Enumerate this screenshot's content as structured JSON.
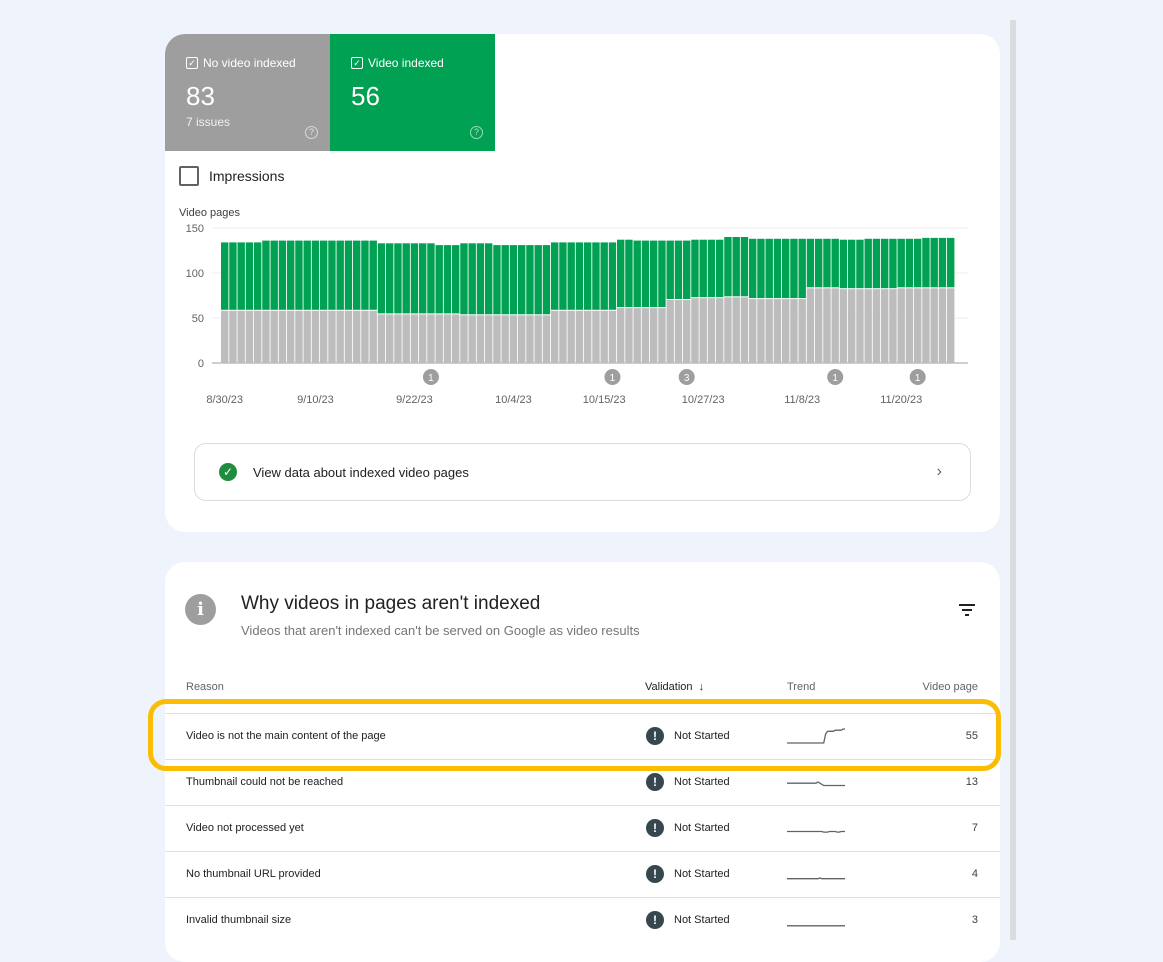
{
  "summary": {
    "no_video": {
      "label": "No video indexed",
      "value": "83",
      "sub": "7 issues",
      "color": "#9e9e9e",
      "checked": true
    },
    "video": {
      "label": "Video indexed",
      "value": "56",
      "color": "#00a152",
      "checked": true
    },
    "impressions_label": "Impressions",
    "impressions_checked": false
  },
  "chart_data": {
    "type": "bar",
    "stacked": true,
    "ylabel": "Video pages",
    "ylim": [
      0,
      150
    ],
    "yticks": [
      "0",
      "50",
      "100",
      "150"
    ],
    "grid": true,
    "x_range": [
      "8/30/23",
      "11/26/23"
    ],
    "xticks": [
      "8/30/23",
      "9/10/23",
      "9/22/23",
      "10/4/23",
      "10/15/23",
      "10/27/23",
      "11/8/23",
      "11/20/23"
    ],
    "annotations": [
      {
        "date": "9/24/23",
        "label": "1"
      },
      {
        "date": "10/16/23",
        "label": "1"
      },
      {
        "date": "10/25/23",
        "label": "3"
      },
      {
        "date": "11/12/23",
        "label": "1"
      },
      {
        "date": "11/22/23",
        "label": "1"
      }
    ],
    "series": [
      {
        "name": "No video indexed",
        "color": "#bdbdbd",
        "values": [
          58,
          58,
          58,
          58,
          58,
          58,
          58,
          58,
          58,
          58,
          58,
          58,
          58,
          58,
          58,
          58,
          58,
          58,
          58,
          54,
          54,
          54,
          54,
          54,
          54,
          54,
          54,
          54,
          54,
          53,
          53,
          53,
          53,
          53,
          53,
          53,
          53,
          53,
          53,
          53,
          58,
          58,
          58,
          58,
          58,
          58,
          58,
          58,
          61,
          61,
          61,
          61,
          61,
          61,
          70,
          70,
          70,
          72,
          72,
          72,
          72,
          73,
          73,
          73,
          71,
          71,
          71,
          71,
          71,
          71,
          71,
          83,
          83,
          83,
          83,
          82,
          82,
          82,
          82,
          82,
          82,
          82,
          83,
          83,
          83,
          83,
          83,
          83,
          83
        ]
      },
      {
        "name": "Video indexed",
        "color": "#00a152",
        "values": [
          76,
          76,
          76,
          76,
          76,
          78,
          78,
          78,
          78,
          78,
          78,
          78,
          78,
          78,
          78,
          78,
          78,
          78,
          78,
          79,
          79,
          79,
          79,
          79,
          79,
          79,
          77,
          77,
          77,
          80,
          80,
          80,
          80,
          78,
          78,
          78,
          78,
          78,
          78,
          78,
          76,
          76,
          76,
          76,
          76,
          76,
          76,
          76,
          76,
          76,
          75,
          75,
          75,
          75,
          66,
          66,
          66,
          65,
          65,
          65,
          65,
          67,
          67,
          67,
          67,
          67,
          67,
          67,
          67,
          67,
          67,
          55,
          55,
          55,
          55,
          55,
          55,
          55,
          56,
          56,
          56,
          56,
          55,
          55,
          55,
          56,
          56,
          56,
          56
        ]
      }
    ]
  },
  "view_button": {
    "label": "View data about indexed video pages",
    "icon": "check-circle-icon"
  },
  "issues": {
    "title": "Why videos in pages aren't indexed",
    "description": "Videos that aren't indexed can't be served on Google as video results",
    "columns": {
      "reason": "Reason",
      "validation": "Validation",
      "trend": "Trend",
      "count": "Video page"
    },
    "rows": [
      {
        "reason": "Video is not the main content of the page",
        "validation": "Not Started",
        "count": "55",
        "trend": [
          0,
          0,
          0,
          0,
          0,
          0,
          0,
          0,
          0,
          0,
          0,
          0,
          0,
          0,
          0,
          0,
          0,
          0,
          0,
          0,
          8,
          10,
          10,
          10,
          10,
          11,
          11,
          11,
          11,
          12,
          12
        ]
      },
      {
        "reason": "Thumbnail could not be reached",
        "validation": "Not Started",
        "count": "13",
        "trend": [
          5,
          5,
          5,
          5,
          5,
          5,
          5,
          5,
          5,
          5,
          5,
          5,
          5,
          5,
          5,
          5,
          6,
          5,
          4,
          3,
          3,
          3,
          3,
          3,
          3,
          3,
          3,
          3,
          3,
          3,
          3
        ]
      },
      {
        "reason": "Video not processed yet",
        "validation": "Not Started",
        "count": "7",
        "trend": [
          3,
          3,
          3,
          3,
          3,
          3,
          3,
          3,
          3,
          3,
          3,
          3,
          3,
          3,
          3,
          3,
          3,
          3,
          3,
          2.5,
          2.5,
          2.5,
          3,
          3,
          3,
          3,
          2.5,
          2.5,
          3,
          3,
          3
        ]
      },
      {
        "reason": "No thumbnail URL provided",
        "validation": "Not Started",
        "count": "4",
        "trend": [
          2,
          2,
          2,
          2,
          2,
          2,
          2,
          2,
          2,
          2,
          2,
          2,
          2,
          2,
          2,
          2,
          2,
          2.6,
          2,
          2,
          2,
          2,
          2,
          2,
          2,
          2,
          2,
          2,
          2,
          2,
          2
        ]
      },
      {
        "reason": "Invalid thumbnail size",
        "validation": "Not Started",
        "count": "3",
        "trend": [
          1,
          1,
          1,
          1,
          1,
          1,
          1,
          1,
          1,
          1,
          1,
          1,
          1,
          1,
          1,
          1,
          1,
          1,
          1,
          1,
          1,
          1,
          1,
          1,
          1,
          1,
          1,
          1,
          1,
          1,
          1
        ]
      }
    ],
    "highlight_color": "#fbbc04"
  }
}
